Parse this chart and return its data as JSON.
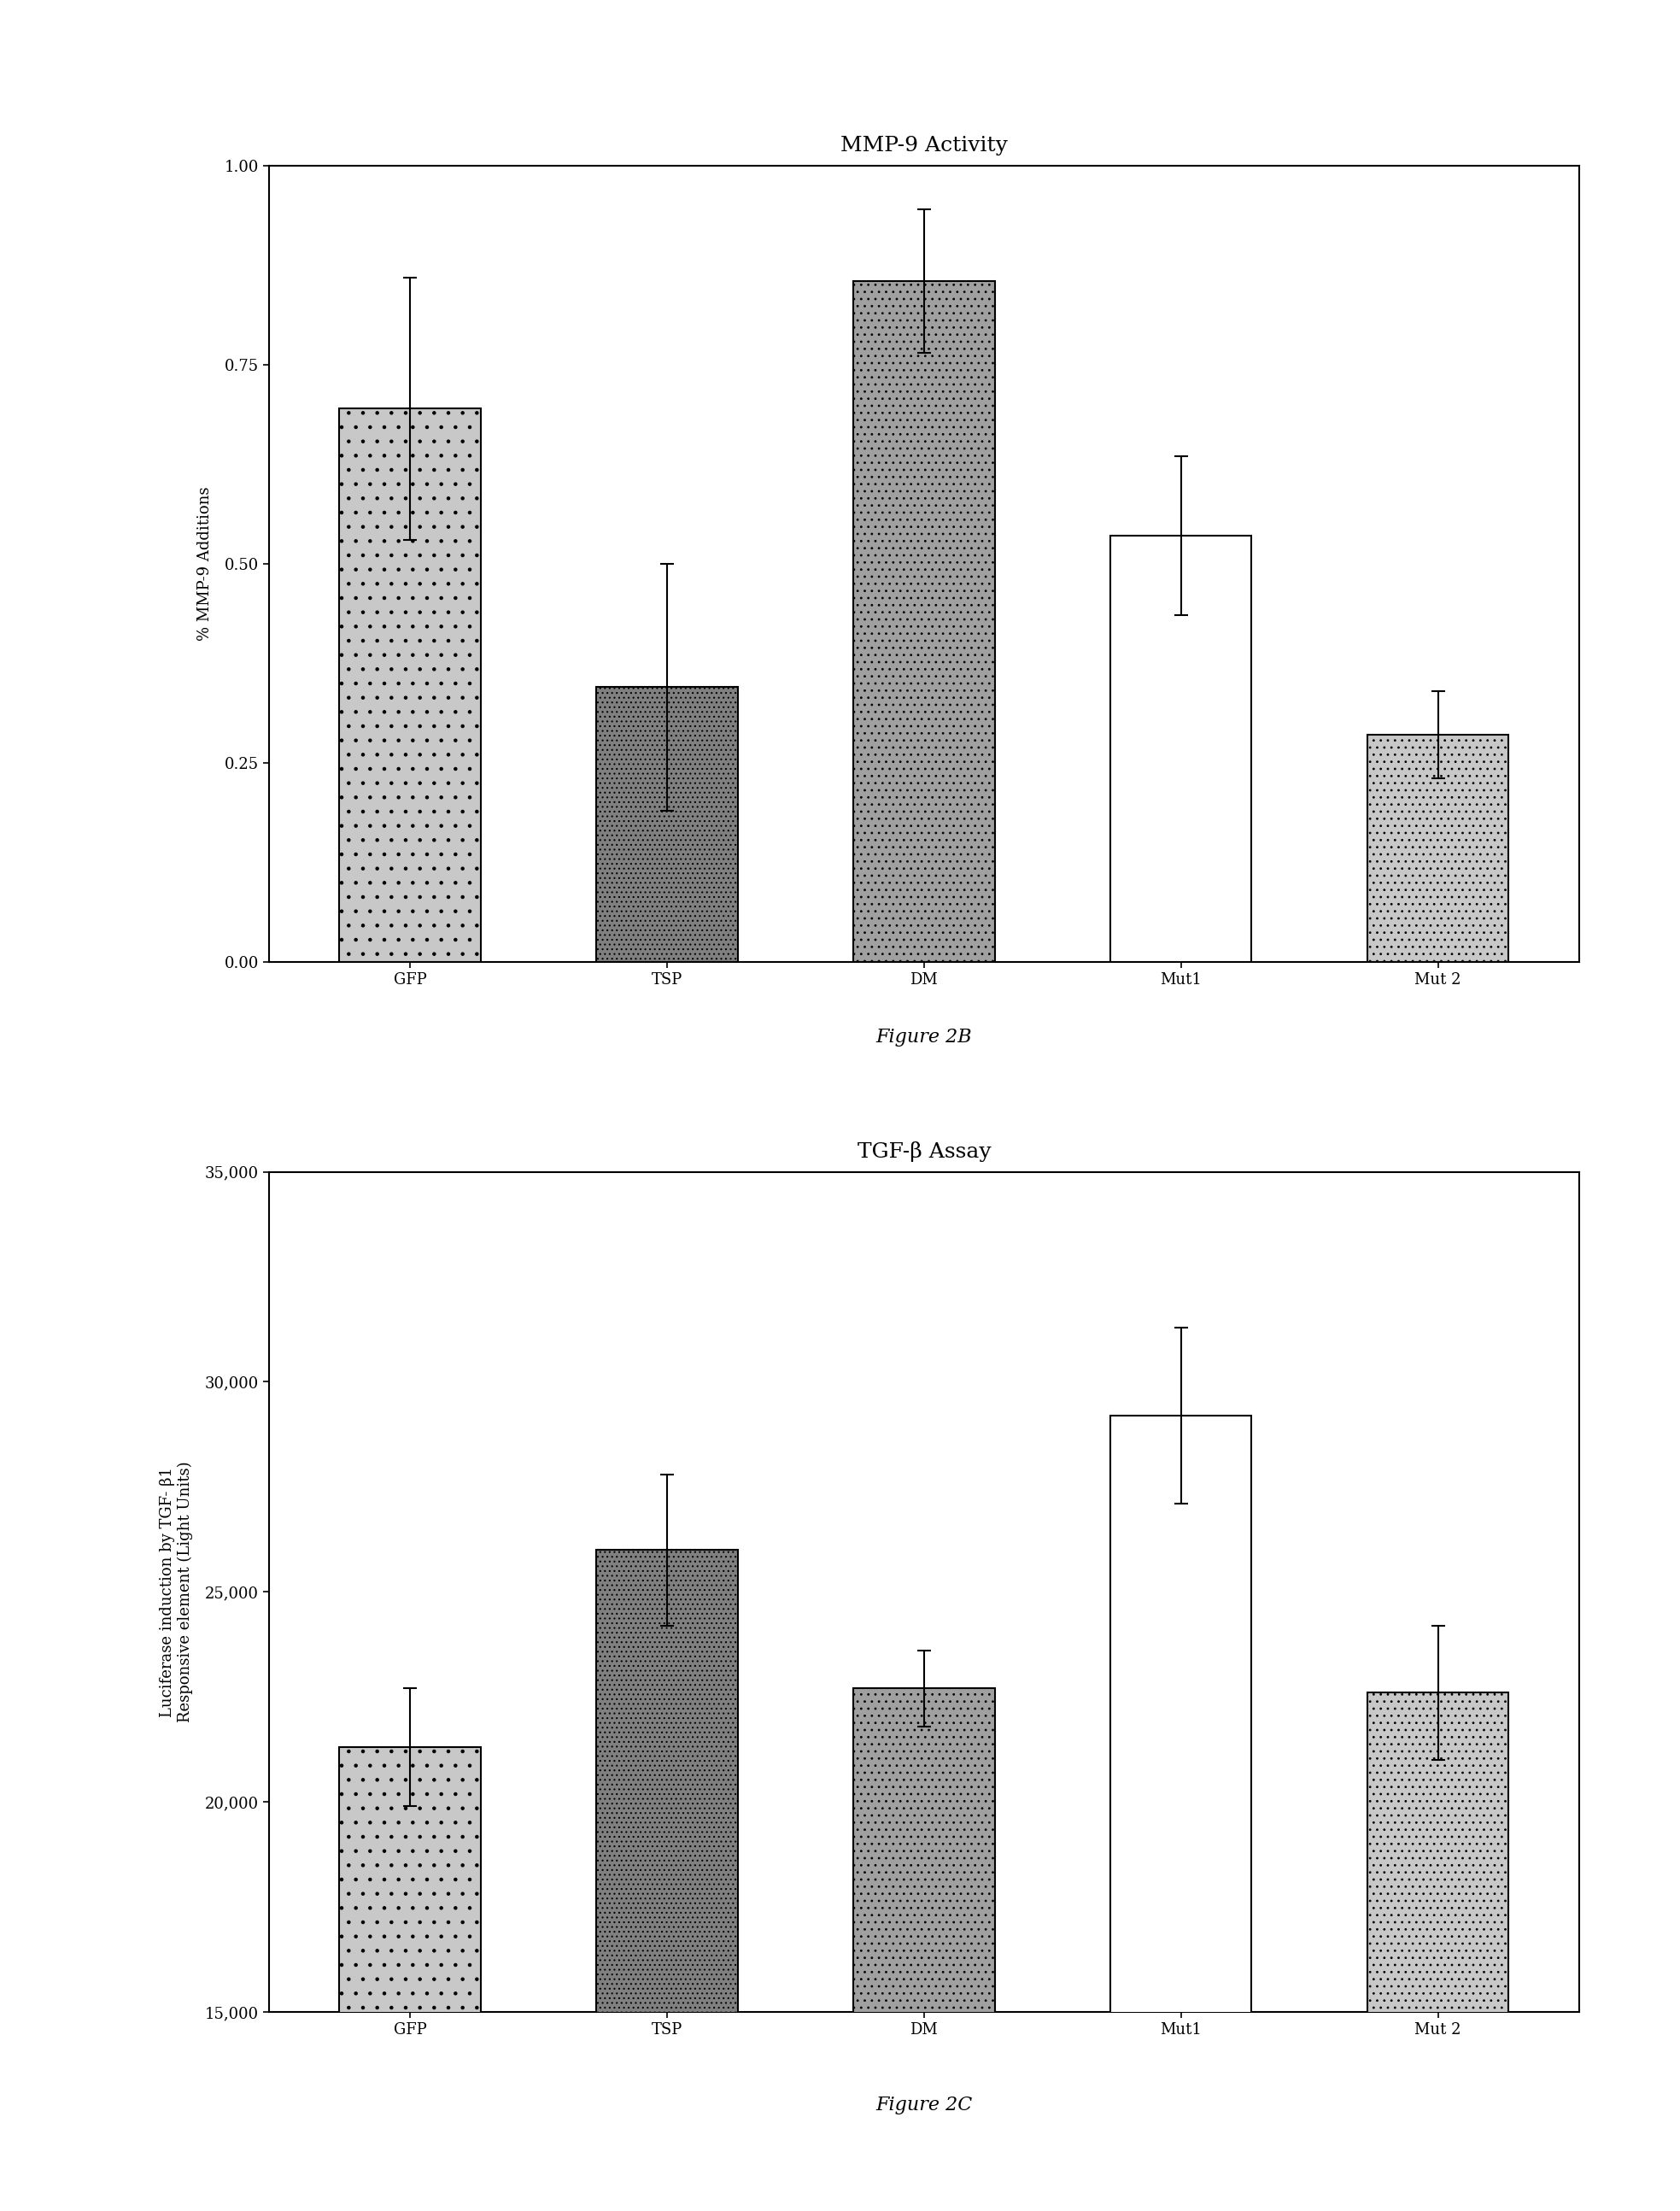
{
  "fig2b": {
    "title": "MMP-9 Activity",
    "ylabel": "% MMP-9 Additions",
    "categories": [
      "GFP",
      "TSP",
      "DM",
      "Mut1",
      "Mut 2"
    ],
    "values": [
      0.695,
      0.345,
      0.855,
      0.535,
      0.285
    ],
    "errors": [
      0.165,
      0.155,
      0.09,
      0.1,
      0.055
    ],
    "bar_colors": [
      "#c8c8c8",
      "#808080",
      "#a0a0a0",
      "#ffffff",
      "#c8c8c8"
    ],
    "bar_edgecolor": "#000000",
    "ylim": [
      0.0,
      1.0
    ],
    "yticks": [
      0.0,
      0.25,
      0.5,
      0.75,
      1.0
    ],
    "yticklabels": [
      "0.00",
      "0.25",
      "0.50",
      "0.75",
      "1.00"
    ],
    "figure_label": "Figure 2B"
  },
  "fig2c": {
    "title": "TGF-β Assay",
    "ylabel": "Luciferase induction by TGF- β1\nResponsive element (Light Units)",
    "categories": [
      "GFP",
      "TSP",
      "DM",
      "Mut1",
      "Mut 2"
    ],
    "values": [
      21300,
      26000,
      22700,
      29200,
      22600
    ],
    "errors": [
      1400,
      1800,
      900,
      2100,
      1600
    ],
    "bar_colors": [
      "#c8c8c8",
      "#808080",
      "#a0a0a0",
      "#ffffff",
      "#c8c8c8"
    ],
    "bar_edgecolor": "#000000",
    "ylim": [
      15000,
      35000
    ],
    "yticks": [
      15000,
      20000,
      25000,
      30000,
      35000
    ],
    "yticklabels": [
      "15,000",
      "20,000",
      "25,000",
      "30,000",
      "35,000"
    ],
    "figure_label": "Figure 2C"
  },
  "background_color": "#ffffff",
  "bar_width": 0.55,
  "font_family": "serif",
  "title_fontsize": 18,
  "label_fontsize": 13,
  "tick_fontsize": 13,
  "fig_label_fontsize": 16
}
